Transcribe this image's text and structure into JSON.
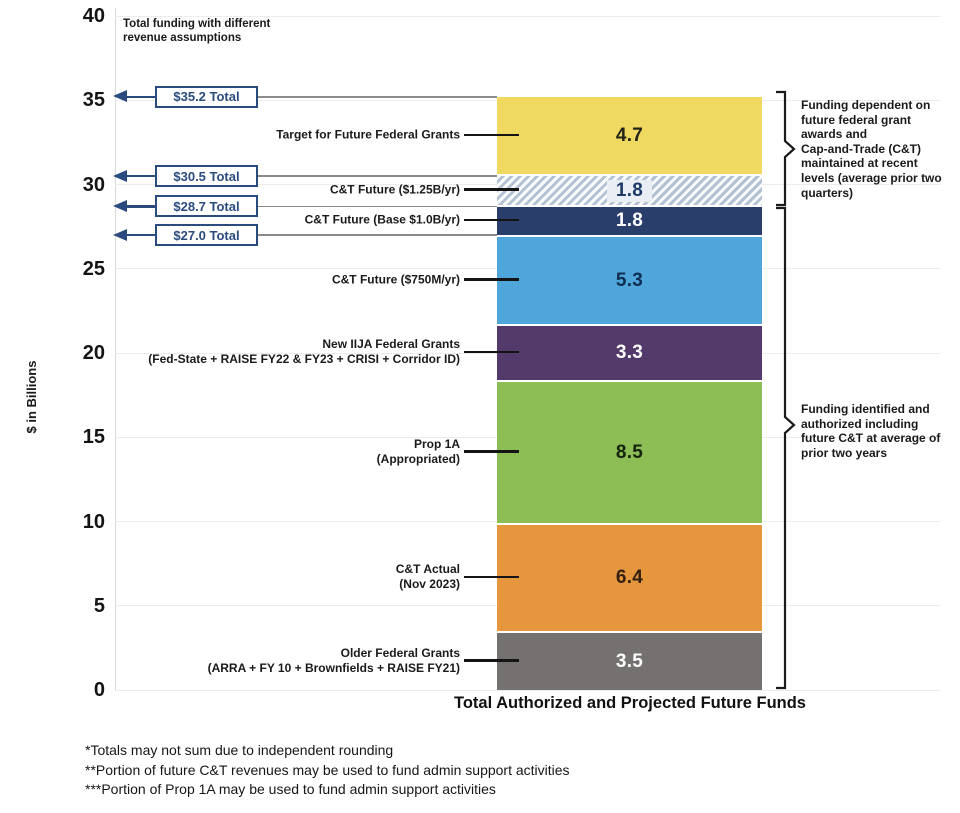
{
  "title_note": "Total funding with different\nrevenue assumptions",
  "y_axis": {
    "label": "$ in Billions",
    "ticks": [
      40,
      35,
      30,
      25,
      20,
      15,
      10,
      5,
      0
    ]
  },
  "x_axis_title": "Total Authorized and Projected Future Funds",
  "chart_data": {
    "type": "bar",
    "stacked": true,
    "categories": [
      "Total Authorized and Projected Future Funds"
    ],
    "ylabel": "$ in Billions",
    "ylim": [
      0,
      40
    ],
    "grid": true,
    "segments_bottom_to_top": [
      {
        "label": "Older Federal Grants",
        "sublabel": "(ARRA + FY 10 + Brownfields + RAISE FY21)",
        "value": 3.5,
        "color": "#767171",
        "text_color": "#ffffff",
        "hatch": false
      },
      {
        "label": "C&T Actual",
        "sublabel": "(Nov 2023)",
        "value": 6.4,
        "color": "#e6973e",
        "text_color": "#33200e",
        "hatch": false
      },
      {
        "label": "Prop 1A",
        "sublabel": "(Appropriated)",
        "value": 8.5,
        "color": "#8dbe55",
        "text_color": "#16230c",
        "hatch": false
      },
      {
        "label": "New IIJA Federal Grants",
        "sublabel": "(Fed-State + RAISE FY22 & FY23 + CRISI + Corridor ID)",
        "value": 3.3,
        "color": "#533a6b",
        "text_color": "#ffffff",
        "hatch": false
      },
      {
        "label": "C&T Future ($750M/yr)",
        "sublabel": "",
        "value": 5.3,
        "color": "#4ea6db",
        "text_color": "#102c50",
        "hatch": false
      },
      {
        "label": "C&T Future (Base $1.0B/yr)",
        "sublabel": "",
        "value": 1.8,
        "color": "#293e6b",
        "text_color": "#ffffff",
        "hatch": false
      },
      {
        "label": "C&T Future ($1.25B/yr)",
        "sublabel": "",
        "value": 1.8,
        "color": "#b3c1d3",
        "text_color": "#1d3a66",
        "hatch": true
      },
      {
        "label": "Target for Future Federal Grants",
        "sublabel": "",
        "value": 4.7,
        "color": "#efd961",
        "text_color": "#23231a",
        "hatch": false
      }
    ],
    "totals": [
      {
        "label": "$35.2 Total",
        "value": 35.2
      },
      {
        "label": "$30.5 Total",
        "value": 30.5
      },
      {
        "label": "$28.7 Total",
        "value": 28.7
      },
      {
        "label": "$27.0 Total",
        "value": 27.0
      }
    ]
  },
  "annotations": {
    "top_brace": "Funding dependent on\nfuture federal grant\nawards and\nCap-and-Trade (C&T)\nmaintained at recent\nlevels (average prior two\nquarters)",
    "bottom_brace": "Funding identified and\nauthorized including\nfuture C&T at average of\nprior two years"
  },
  "footnotes": [
    "*Totals may not sum due to independent rounding",
    "**Portion of future C&T revenues may be used to fund admin support activities",
    "***Portion of  Prop 1A may be used to fund admin support activities"
  ],
  "colors": {
    "callout_navy": "#2b4b7e",
    "gridline": "#ececec",
    "connector_black": "#141414"
  }
}
